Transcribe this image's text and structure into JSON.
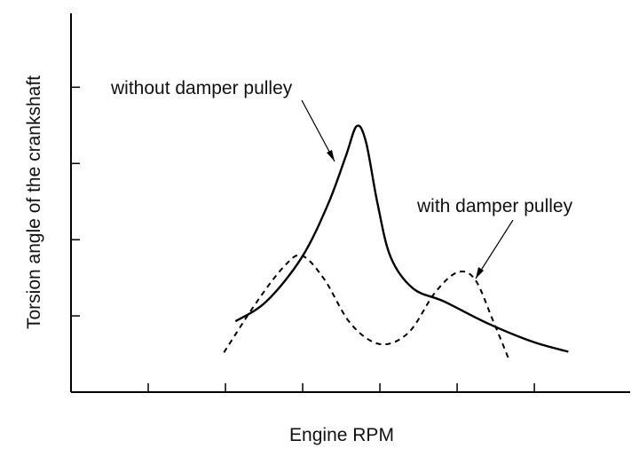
{
  "chart_data": {
    "type": "line",
    "x_label": "Engine RPM",
    "y_label": "Torsion angle of the crankshaft",
    "xlim": [
      0,
      7.24
    ],
    "ylim": [
      0,
      4.97
    ],
    "xticks": [
      1,
      2,
      3,
      4,
      5,
      6
    ],
    "yticks": [
      1,
      2,
      3,
      4
    ],
    "series": [
      {
        "name": "without damper pulley",
        "color": "#000000",
        "line_style": "solid",
        "x": [
          2.13,
          2.53,
          2.99,
          3.33,
          3.56,
          3.7,
          3.82,
          3.97,
          4.14,
          4.43,
          4.83,
          5.4,
          5.98,
          6.44
        ],
        "values": [
          0.93,
          1.19,
          1.77,
          2.47,
          3.1,
          3.49,
          3.28,
          2.47,
          1.77,
          1.36,
          1.19,
          0.9,
          0.66,
          0.53
        ]
      },
      {
        "name": "with damper pulley",
        "color": "#000000",
        "line_style": "dashed",
        "x": [
          1.98,
          2.41,
          2.76,
          2.99,
          3.28,
          3.62,
          4.0,
          4.37,
          4.71,
          5.0,
          5.23,
          5.46,
          5.67
        ],
        "values": [
          0.52,
          1.19,
          1.65,
          1.79,
          1.48,
          0.9,
          0.63,
          0.78,
          1.3,
          1.57,
          1.48,
          0.95,
          0.43
        ]
      }
    ]
  }
}
